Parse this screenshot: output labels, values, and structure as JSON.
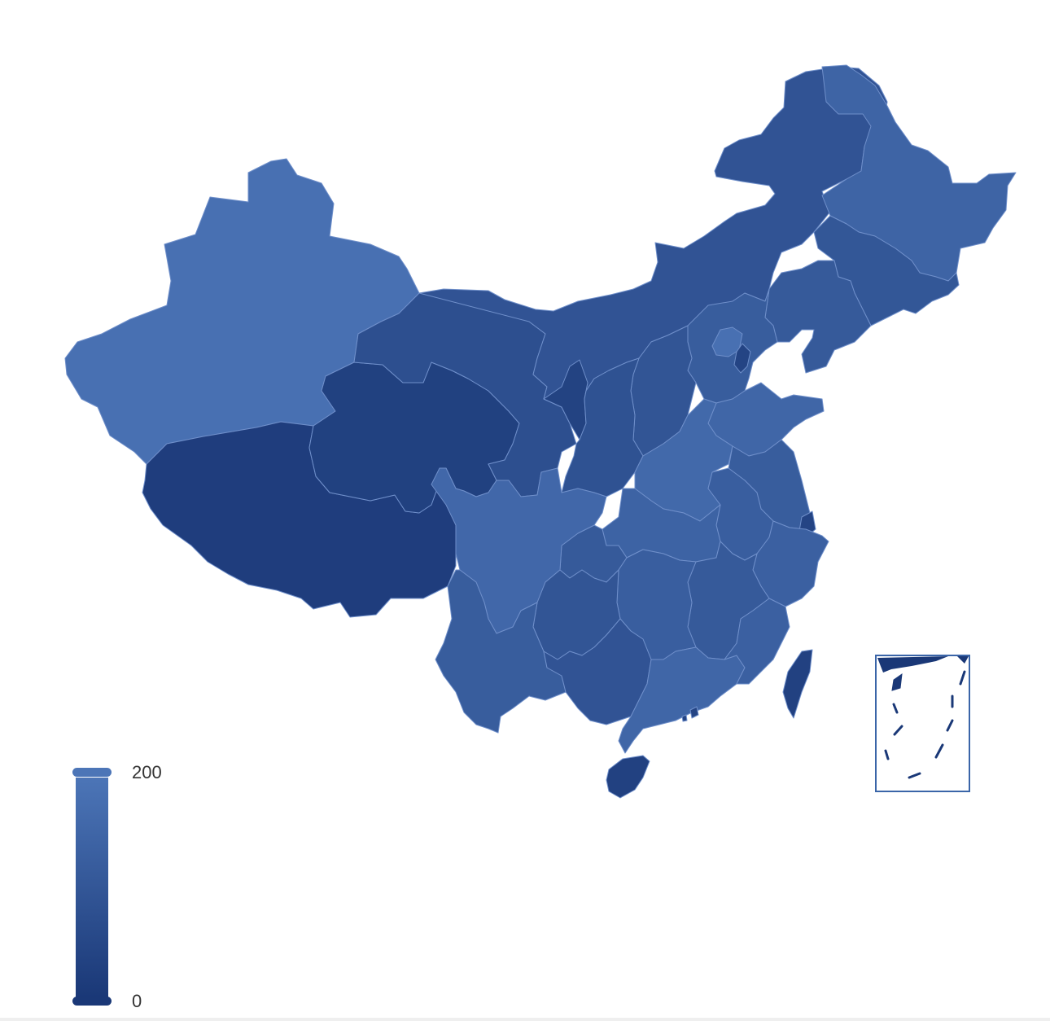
{
  "visual_map": {
    "max_label": "200",
    "min_label": "0",
    "max_value": 200,
    "min_value": 0,
    "color_high": "#4c75b7",
    "color_low": "#1a3877"
  },
  "colors": {
    "border": "#6f8fca",
    "inset_border": "#3a65a8",
    "background": "#ffffff"
  },
  "regions": [
    {
      "id": "xinjiang",
      "value": 185
    },
    {
      "id": "xizang",
      "value": 18
    },
    {
      "id": "qinghai",
      "value": 28
    },
    {
      "id": "gansu",
      "value": 75
    },
    {
      "id": "neimenggu",
      "value": 90
    },
    {
      "id": "heilongjiang",
      "value": 145
    },
    {
      "id": "jilin",
      "value": 100
    },
    {
      "id": "liaoning",
      "value": 110
    },
    {
      "id": "hebei",
      "value": 120
    },
    {
      "id": "beijing",
      "value": 185
    },
    {
      "id": "tianjin",
      "value": 40
    },
    {
      "id": "shandong",
      "value": 150
    },
    {
      "id": "ningxia",
      "value": 35
    },
    {
      "id": "shanxi",
      "value": 95
    },
    {
      "id": "shaanxi",
      "value": 85
    },
    {
      "id": "henan",
      "value": 160
    },
    {
      "id": "jiangsu",
      "value": 120
    },
    {
      "id": "shanghai",
      "value": 40
    },
    {
      "id": "anhui",
      "value": 125
    },
    {
      "id": "hubei",
      "value": 140
    },
    {
      "id": "chongqing",
      "value": 110
    },
    {
      "id": "sichuan",
      "value": 155
    },
    {
      "id": "zhejiang",
      "value": 130
    },
    {
      "id": "jiangxi",
      "value": 110
    },
    {
      "id": "hunan",
      "value": 125
    },
    {
      "id": "guizhou",
      "value": 95
    },
    {
      "id": "yunnan",
      "value": 120
    },
    {
      "id": "guangxi",
      "value": 90
    },
    {
      "id": "guangdong",
      "value": 150
    },
    {
      "id": "fujian",
      "value": 130
    },
    {
      "id": "hainan",
      "value": 30
    },
    {
      "id": "taiwan",
      "value": 30
    },
    {
      "id": "hongkong",
      "value": 40
    },
    {
      "id": "macau",
      "value": 40
    }
  ]
}
